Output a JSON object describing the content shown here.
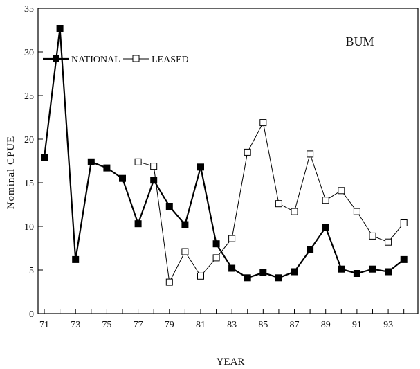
{
  "chart_data": {
    "type": "line",
    "title": "",
    "panel_label": "BUM",
    "xlabel": "YEAR",
    "ylabel": "Nominal CPUE",
    "xlim": [
      70.6,
      94.9
    ],
    "ylim": [
      0,
      35
    ],
    "x_ticks": [
      71,
      72,
      73,
      74,
      75,
      76,
      77,
      78,
      79,
      80,
      81,
      82,
      83,
      84,
      85,
      86,
      87,
      88,
      89,
      90,
      91,
      92,
      93,
      94
    ],
    "x_tick_labels": [
      71,
      73,
      75,
      77,
      79,
      81,
      83,
      85,
      87,
      89,
      91,
      93
    ],
    "y_ticks": [
      0,
      5,
      10,
      15,
      20,
      25,
      30,
      35
    ],
    "grid": false,
    "legend_position": "top-left",
    "series": [
      {
        "name": "NATIONAL",
        "marker": "filled-square",
        "color": "#000000",
        "x": [
          71,
          72,
          73,
          74,
          75,
          76,
          77,
          78,
          79,
          80,
          81,
          82,
          83,
          84,
          85,
          86,
          87,
          88,
          89,
          90,
          91,
          92,
          93,
          94
        ],
        "values": [
          17.9,
          32.7,
          6.2,
          17.4,
          16.7,
          15.5,
          10.3,
          15.3,
          12.3,
          10.2,
          16.8,
          8.0,
          5.2,
          4.1,
          4.7,
          4.1,
          4.8,
          7.3,
          9.9,
          5.1,
          4.6,
          5.1,
          4.8,
          6.2
        ]
      },
      {
        "name": "LEASED",
        "marker": "open-square",
        "color": "#000000",
        "x": [
          77,
          78,
          79,
          80,
          81,
          82,
          83,
          84,
          85,
          86,
          87,
          88,
          89,
          90,
          91,
          92,
          93,
          94
        ],
        "values": [
          17.4,
          16.9,
          3.6,
          7.1,
          4.3,
          6.4,
          8.6,
          18.5,
          21.9,
          12.6,
          11.7,
          18.3,
          13.0,
          14.1,
          11.7,
          8.9,
          8.2,
          10.4
        ]
      }
    ]
  }
}
